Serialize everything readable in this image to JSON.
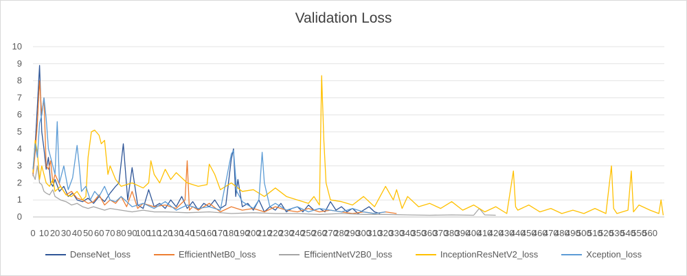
{
  "chart_data": {
    "type": "line",
    "title": "Validation Loss",
    "xlabel": "",
    "ylabel": "",
    "xlim": [
      0,
      573
    ],
    "ylim": [
      0,
      10
    ],
    "y_ticks": [
      "0",
      "1",
      "2",
      "3",
      "4",
      "5",
      "6",
      "7",
      "8",
      "9",
      "10"
    ],
    "x_ticks": [
      "0",
      "10",
      "20",
      "30",
      "40",
      "50",
      "60",
      "70",
      "80",
      "90",
      "100",
      "110",
      "120",
      "130",
      "140",
      "150",
      "160",
      "170",
      "180",
      "190",
      "200",
      "210",
      "220",
      "230",
      "240",
      "250",
      "260",
      "270",
      "280",
      "290",
      "300",
      "310",
      "320",
      "330",
      "340",
      "350",
      "360",
      "370",
      "380",
      "390",
      "400",
      "410",
      "420",
      "430",
      "440",
      "450",
      "460",
      "470",
      "480",
      "490",
      "500",
      "510",
      "520",
      "530",
      "540",
      "550",
      "560"
    ],
    "grid": "horizontal",
    "legend_position": "bottom",
    "series": [
      {
        "name": "DenseNet_loss",
        "color": "#2e5597",
        "x": [
          0,
          2,
          4,
          6,
          8,
          10,
          12,
          14,
          16,
          18,
          20,
          24,
          28,
          32,
          36,
          40,
          45,
          50,
          55,
          60,
          65,
          70,
          75,
          78,
          82,
          86,
          90,
          95,
          100,
          105,
          110,
          115,
          120,
          125,
          130,
          135,
          140,
          145,
          150,
          155,
          160,
          165,
          170,
          175,
          180,
          182,
          184,
          186,
          190,
          195,
          200,
          205,
          210,
          215,
          220,
          225,
          230,
          235,
          240,
          245,
          250,
          255,
          260,
          265,
          270,
          275,
          280,
          285,
          290,
          295,
          300,
          305,
          310,
          315
        ],
        "values": [
          2.5,
          4.2,
          6.5,
          8.9,
          5.0,
          4.0,
          2.8,
          3.5,
          2.0,
          1.8,
          2.2,
          1.5,
          1.8,
          1.2,
          1.4,
          1.0,
          0.9,
          1.1,
          0.8,
          1.2,
          0.9,
          1.4,
          1.8,
          2.0,
          4.3,
          1.0,
          2.9,
          0.7,
          0.5,
          1.6,
          0.6,
          0.8,
          0.5,
          1.0,
          0.6,
          1.2,
          0.5,
          0.9,
          0.4,
          0.8,
          0.6,
          1.0,
          0.5,
          0.7,
          3.4,
          4.0,
          1.2,
          2.2,
          0.6,
          0.8,
          0.4,
          1.0,
          0.3,
          0.6,
          0.4,
          0.8,
          0.3,
          0.5,
          0.6,
          0.3,
          0.7,
          0.4,
          0.5,
          0.3,
          0.9,
          0.4,
          0.6,
          0.3,
          0.5,
          0.2,
          0.4,
          0.6,
          0.3,
          0.2
        ]
      },
      {
        "name": "EfficientNetB0_loss",
        "color": "#ed7d31",
        "x": [
          0,
          2,
          4,
          6,
          8,
          10,
          12,
          14,
          16,
          18,
          20,
          25,
          30,
          35,
          40,
          45,
          50,
          55,
          60,
          65,
          70,
          75,
          80,
          85,
          90,
          95,
          100,
          110,
          120,
          130,
          138,
          140,
          142,
          145,
          150,
          160,
          170,
          180,
          190,
          200,
          210,
          220,
          230,
          240,
          250,
          260,
          270,
          280,
          290,
          300,
          310,
          320,
          330
        ],
        "values": [
          2.4,
          3.8,
          5.5,
          8.0,
          6.0,
          7.0,
          3.0,
          2.8,
          3.3,
          2.0,
          2.5,
          1.8,
          1.3,
          1.5,
          1.1,
          1.0,
          0.8,
          0.9,
          1.3,
          0.7,
          1.0,
          0.8,
          1.2,
          0.6,
          1.5,
          0.5,
          0.8,
          0.6,
          0.7,
          0.5,
          1.0,
          3.3,
          0.4,
          0.6,
          0.4,
          0.8,
          0.3,
          0.6,
          0.4,
          0.5,
          0.3,
          0.6,
          0.4,
          0.3,
          0.5,
          0.3,
          0.4,
          0.3,
          0.2,
          0.3,
          0.2,
          0.3,
          0.2
        ]
      },
      {
        "name": "EfficientNetV2B0_loss",
        "color": "#a5a5a5",
        "x": [
          0,
          2,
          4,
          6,
          8,
          10,
          12,
          15,
          18,
          20,
          25,
          30,
          35,
          40,
          45,
          50,
          55,
          60,
          65,
          70,
          80,
          90,
          100,
          110,
          120,
          140,
          160,
          180,
          200,
          220,
          240,
          260,
          280,
          300,
          320,
          340,
          360,
          380,
          400,
          405,
          410,
          420
        ],
        "values": [
          2.5,
          2.2,
          3.0,
          2.0,
          1.9,
          1.5,
          1.4,
          1.3,
          1.6,
          1.2,
          1.0,
          0.9,
          0.7,
          0.8,
          0.6,
          0.5,
          0.6,
          0.5,
          0.4,
          0.5,
          0.4,
          0.3,
          0.4,
          0.3,
          0.3,
          0.25,
          0.3,
          0.2,
          0.25,
          0.2,
          0.2,
          0.15,
          0.2,
          0.15,
          0.15,
          0.12,
          0.1,
          0.12,
          0.1,
          0.5,
          0.12,
          0.1
        ]
      },
      {
        "name": "InceptionResNetV2_loss",
        "color": "#ffc000",
        "x": [
          0,
          2,
          4,
          6,
          8,
          10,
          12,
          15,
          18,
          20,
          25,
          30,
          35,
          40,
          45,
          48,
          50,
          53,
          56,
          60,
          62,
          65,
          68,
          70,
          75,
          80,
          90,
          100,
          105,
          107,
          110,
          115,
          120,
          125,
          130,
          140,
          150,
          158,
          160,
          165,
          170,
          180,
          190,
          200,
          210,
          220,
          230,
          240,
          250,
          255,
          260,
          262,
          264,
          266,
          270,
          280,
          290,
          300,
          310,
          320,
          327,
          330,
          335,
          340,
          350,
          360,
          370,
          380,
          390,
          400,
          410,
          420,
          430,
          436,
          438,
          440,
          450,
          460,
          470,
          480,
          490,
          500,
          510,
          520,
          525,
          527,
          530,
          540,
          543,
          545,
          550,
          560,
          568,
          570,
          572
        ],
        "values": [
          2.6,
          4.5,
          3.8,
          2.2,
          3.0,
          2.5,
          2.0,
          1.8,
          2.2,
          1.5,
          1.8,
          1.3,
          1.2,
          1.5,
          1.0,
          1.2,
          3.5,
          5.0,
          5.1,
          4.8,
          4.3,
          4.5,
          2.5,
          3.0,
          2.2,
          1.8,
          2.0,
          1.7,
          2.0,
          3.3,
          2.5,
          2.0,
          2.8,
          2.2,
          2.6,
          2.0,
          1.8,
          1.9,
          3.1,
          2.5,
          1.6,
          2.0,
          1.5,
          1.6,
          1.2,
          1.7,
          1.2,
          1.0,
          0.8,
          1.2,
          0.7,
          8.3,
          4.5,
          2.0,
          1.0,
          0.9,
          0.7,
          1.2,
          0.6,
          1.8,
          1.0,
          1.6,
          0.5,
          1.2,
          0.6,
          0.8,
          0.5,
          0.9,
          0.4,
          0.7,
          0.3,
          0.6,
          0.2,
          2.7,
          0.6,
          0.4,
          0.7,
          0.3,
          0.5,
          0.2,
          0.4,
          0.2,
          0.5,
          0.2,
          3.0,
          0.5,
          0.2,
          0.4,
          2.7,
          0.3,
          0.7,
          0.4,
          0.2,
          1.0,
          0.1
        ]
      },
      {
        "name": "Xception_loss",
        "color": "#5b9bd5",
        "x": [
          0,
          2,
          4,
          6,
          8,
          10,
          12,
          14,
          16,
          18,
          20,
          22,
          24,
          28,
          32,
          36,
          40,
          42,
          44,
          48,
          52,
          56,
          60,
          65,
          70,
          75,
          80,
          90,
          100,
          110,
          120,
          130,
          140,
          150,
          160,
          170,
          180,
          182,
          185,
          190,
          200,
          205,
          208,
          210,
          215,
          220,
          230,
          240,
          250,
          260,
          270,
          280,
          290,
          300,
          310,
          320
        ],
        "values": [
          2.8,
          4.3,
          3.5,
          5.5,
          6.0,
          7.0,
          5.8,
          4.0,
          3.5,
          3.0,
          2.5,
          5.6,
          2.0,
          3.0,
          1.6,
          2.3,
          4.2,
          3.0,
          1.5,
          1.8,
          1.0,
          1.5,
          1.2,
          1.8,
          1.0,
          0.9,
          1.2,
          0.6,
          0.8,
          0.5,
          0.9,
          0.4,
          0.7,
          0.5,
          0.6,
          0.4,
          3.7,
          3.9,
          1.5,
          0.9,
          0.5,
          1.0,
          3.8,
          2.0,
          0.6,
          0.8,
          0.4,
          0.6,
          0.3,
          0.5,
          0.4,
          0.3,
          0.5,
          0.3,
          0.2,
          0.3
        ]
      }
    ]
  }
}
